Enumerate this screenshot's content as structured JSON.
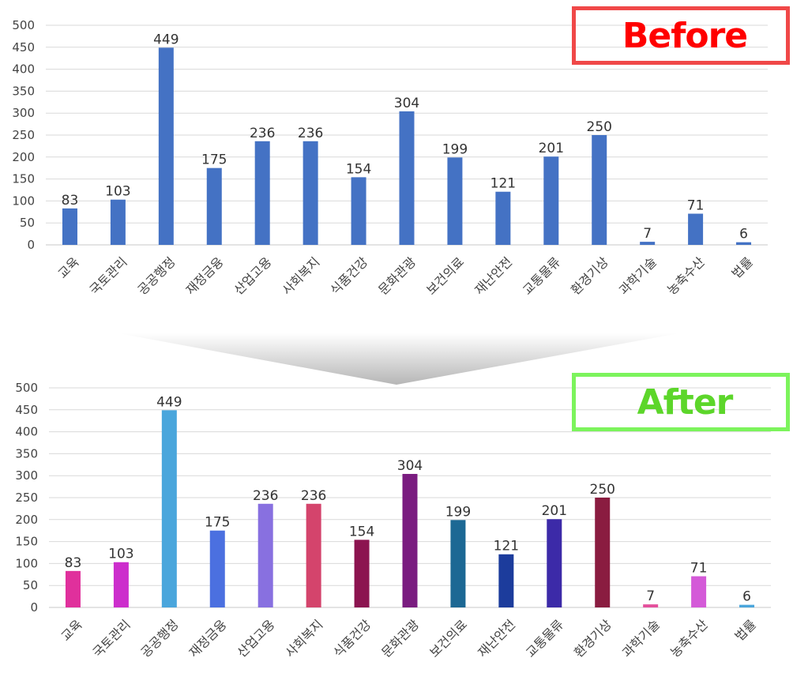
{
  "badges": {
    "before": "Before",
    "after": "After"
  },
  "chart_data": [
    {
      "type": "bar",
      "categories": [
        "교육",
        "국토관리",
        "공공행정",
        "재정금융",
        "산업고용",
        "사회복지",
        "식품건강",
        "문화관광",
        "보건의료",
        "재난안전",
        "교통물류",
        "환경기상",
        "과학기술",
        "농축수산",
        "법률"
      ],
      "values": [
        83,
        103,
        449,
        175,
        236,
        236,
        154,
        304,
        199,
        121,
        201,
        250,
        7,
        71,
        6
      ],
      "ylim": [
        0,
        500
      ],
      "yticks": [
        0,
        50,
        100,
        150,
        200,
        250,
        300,
        350,
        400,
        450,
        500
      ],
      "grid": true,
      "colors": [
        "#4472c4"
      ]
    },
    {
      "type": "bar",
      "categories": [
        "교육",
        "국토관리",
        "공공행정",
        "재정금융",
        "산업고용",
        "사회복지",
        "식품건강",
        "문화관광",
        "보건의료",
        "재난안전",
        "교통물류",
        "환경기상",
        "과학기술",
        "농축수산",
        "법률"
      ],
      "values": [
        83,
        103,
        449,
        175,
        236,
        236,
        154,
        304,
        199,
        121,
        201,
        250,
        7,
        71,
        6
      ],
      "ylim": [
        0,
        500
      ],
      "yticks": [
        0,
        50,
        100,
        150,
        200,
        250,
        300,
        350,
        400,
        450,
        500
      ],
      "grid": true,
      "colors": [
        "#e0309c",
        "#cc2ecc",
        "#4aa6dc",
        "#4b70e0",
        "#8870e0",
        "#d4446c",
        "#8c1450",
        "#7a1c80",
        "#1c6894",
        "#1c3c9c",
        "#3c2aa8",
        "#8a1c40",
        "#e4509c",
        "#d45ad8",
        "#4aa6dc"
      ]
    }
  ]
}
